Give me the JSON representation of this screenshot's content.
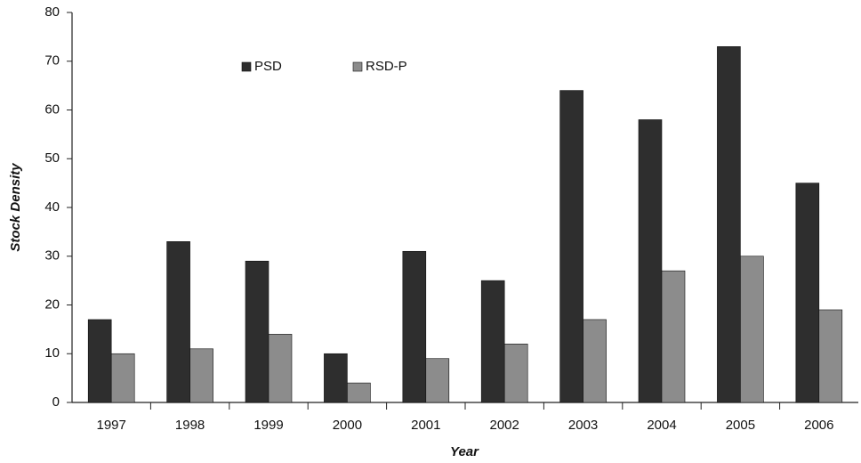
{
  "chart_data": {
    "type": "bar",
    "xlabel": "Year",
    "ylabel": "Stock Density",
    "categories": [
      "1997",
      "1998",
      "1999",
      "2000",
      "2001",
      "2002",
      "2003",
      "2004",
      "2005",
      "2006"
    ],
    "series": [
      {
        "name": "PSD",
        "color": "#2e2e2e",
        "values": [
          17,
          33,
          29,
          10,
          31,
          25,
          64,
          58,
          73,
          45
        ]
      },
      {
        "name": "RSD-P",
        "color": "#8c8c8c",
        "values": [
          10,
          11,
          14,
          4,
          9,
          12,
          17,
          27,
          30,
          19
        ]
      }
    ],
    "ylim": [
      0,
      80
    ],
    "yticks": [
      0,
      10,
      20,
      30,
      40,
      50,
      60,
      70,
      80
    ],
    "grid": false
  }
}
